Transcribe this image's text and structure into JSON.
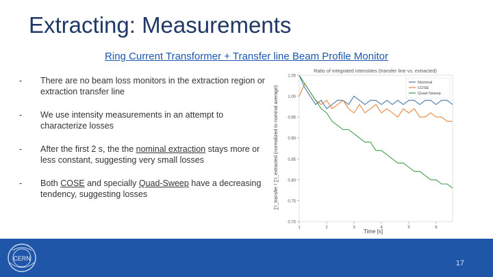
{
  "title": "Extracting: Measurements",
  "subtitle": "Ring Current Transformer + Transfer line Beam Profile Monitor",
  "bullets": [
    {
      "dash": "-",
      "text": "There are no beam loss monitors in the extraction region or extraction transfer line"
    },
    {
      "dash": "-",
      "text": "We use intensity measurements in an attempt to characterize losses"
    },
    {
      "dash": "-",
      "pre": "After the first 2 s, the the ",
      "link": "nominal extraction",
      "post": " stays more or less constant, suggesting very small losses"
    },
    {
      "dash": "-",
      "pre": "Both ",
      "link": "COSE",
      "mid": " and specially ",
      "link2": "Quad-Sweep",
      "post": " have a decreasing tendency, suggesting losses"
    }
  ],
  "footer": {
    "logo_text": "CERN",
    "page_number": "17",
    "background": "#1f56a8"
  },
  "chart_data": {
    "type": "line",
    "title": "Ratio of integrated intensities (transfer line vs. extracted)",
    "xlabel": "Time [s]",
    "ylabel": "∑I_transfer / ∑I_extracted (normalized to nominal average)",
    "xlim": [
      1,
      6.6
    ],
    "ylim": [
      0.7,
      1.05
    ],
    "xticks": [
      1,
      2,
      3,
      4,
      5,
      6
    ],
    "yticks": [
      0.7,
      0.75,
      0.8,
      0.85,
      0.9,
      0.95,
      1.0,
      1.05
    ],
    "legend_position": "top-right",
    "series": [
      {
        "name": "Nominal",
        "color": "#4c78a8",
        "x": [
          1.0,
          1.2,
          1.4,
          1.6,
          1.8,
          2.0,
          2.2,
          2.4,
          2.6,
          2.8,
          3.0,
          3.2,
          3.4,
          3.6,
          3.8,
          4.0,
          4.2,
          4.4,
          4.6,
          4.8,
          5.0,
          5.2,
          5.4,
          5.6,
          5.8,
          6.0,
          6.2,
          6.4,
          6.6
        ],
        "y": [
          1.05,
          1.02,
          1.0,
          0.98,
          0.99,
          0.97,
          0.98,
          0.99,
          0.99,
          0.98,
          1.0,
          0.99,
          0.98,
          0.99,
          0.99,
          0.98,
          0.99,
          0.98,
          0.99,
          0.98,
          0.99,
          0.99,
          0.98,
          0.99,
          0.99,
          0.98,
          0.99,
          0.99,
          0.98
        ]
      },
      {
        "name": "COSE",
        "color": "#e8833a",
        "x": [
          1.0,
          1.2,
          1.4,
          1.6,
          1.8,
          2.0,
          2.2,
          2.4,
          2.6,
          2.8,
          3.0,
          3.2,
          3.4,
          3.6,
          3.8,
          4.0,
          4.2,
          4.4,
          4.6,
          4.8,
          5.0,
          5.2,
          5.4,
          5.6,
          5.8,
          6.0,
          6.2,
          6.4,
          6.6
        ],
        "y": [
          1.0,
          1.03,
          1.01,
          0.99,
          0.98,
          0.99,
          0.97,
          0.98,
          0.99,
          0.97,
          0.96,
          0.98,
          0.96,
          0.97,
          0.98,
          0.96,
          0.97,
          0.96,
          0.95,
          0.97,
          0.96,
          0.97,
          0.95,
          0.95,
          0.96,
          0.95,
          0.95,
          0.94,
          0.94
        ]
      },
      {
        "name": "Quad-Sweep",
        "color": "#3f9a4a",
        "x": [
          1.0,
          1.2,
          1.4,
          1.6,
          1.8,
          2.0,
          2.2,
          2.4,
          2.6,
          2.8,
          3.0,
          3.2,
          3.4,
          3.6,
          3.8,
          4.0,
          4.2,
          4.4,
          4.6,
          4.8,
          5.0,
          5.2,
          5.4,
          5.6,
          5.8,
          6.0,
          6.2,
          6.4,
          6.6
        ],
        "y": [
          1.05,
          1.03,
          1.01,
          0.99,
          0.97,
          0.96,
          0.94,
          0.93,
          0.92,
          0.92,
          0.91,
          0.9,
          0.89,
          0.89,
          0.87,
          0.87,
          0.86,
          0.85,
          0.84,
          0.84,
          0.83,
          0.82,
          0.82,
          0.81,
          0.8,
          0.8,
          0.79,
          0.79,
          0.78
        ]
      }
    ]
  }
}
